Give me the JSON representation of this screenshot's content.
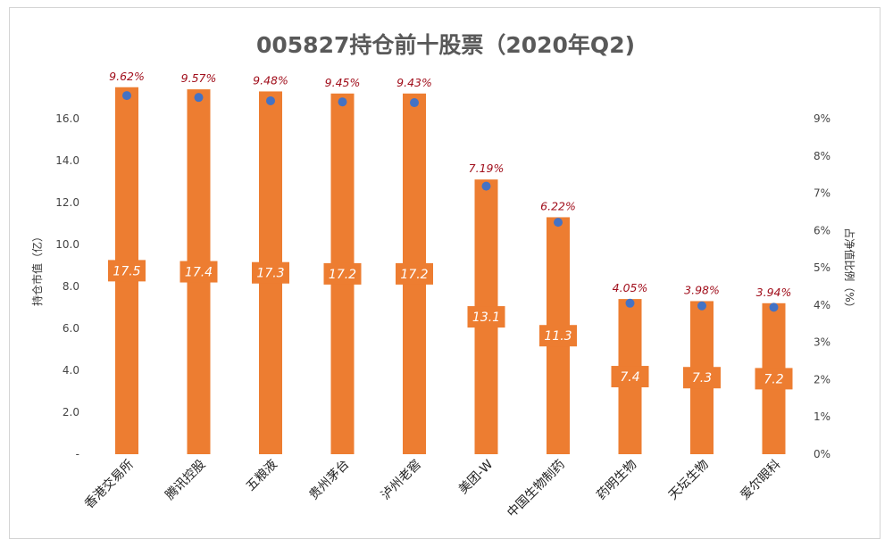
{
  "chart_data": {
    "type": "bar",
    "title": "005827持仓前十股票（2020年Q2)",
    "ylabel": "持仓市值（亿）",
    "y2label": "占净值比例（%）",
    "ylim": [
      0,
      18
    ],
    "y2lim": [
      0,
      10
    ],
    "yticks": [
      {
        "value": 0,
        "label": "-"
      },
      {
        "value": 2,
        "label": "2.0"
      },
      {
        "value": 4,
        "label": "4.0"
      },
      {
        "value": 6,
        "label": "6.0"
      },
      {
        "value": 8,
        "label": "8.0"
      },
      {
        "value": 10,
        "label": "10.0"
      },
      {
        "value": 12,
        "label": "12.0"
      },
      {
        "value": 14,
        "label": "14.0"
      },
      {
        "value": 16,
        "label": "16.0"
      }
    ],
    "y2ticks": [
      {
        "value": 0,
        "label": "0%"
      },
      {
        "value": 1,
        "label": "1%"
      },
      {
        "value": 2,
        "label": "2%"
      },
      {
        "value": 3,
        "label": "3%"
      },
      {
        "value": 4,
        "label": "4%"
      },
      {
        "value": 5,
        "label": "5%"
      },
      {
        "value": 6,
        "label": "6%"
      },
      {
        "value": 7,
        "label": "7%"
      },
      {
        "value": 8,
        "label": "8%"
      },
      {
        "value": 9,
        "label": "9%"
      }
    ],
    "categories": [
      "香港交易所",
      "腾讯控股",
      "五粮液",
      "贵州茅台",
      "泸州老窖",
      "美团-W",
      "中国生物制药",
      "药明生物",
      "天坛生物",
      "爱尔眼科"
    ],
    "series": [
      {
        "values": [
          17.5,
          17.4,
          17.3,
          17.2,
          17.2,
          13.1,
          11.3,
          7.4,
          7.3,
          7.2
        ],
        "labels": [
          "17.5",
          "17.4",
          "17.3",
          "17.2",
          "17.2",
          "13.1",
          "11.3",
          "7.4",
          "7.3",
          "7.2"
        ],
        "color": "#ed7d31",
        "axis": "left"
      },
      {
        "values": [
          9.62,
          9.57,
          9.48,
          9.45,
          9.43,
          7.19,
          6.22,
          4.05,
          3.98,
          3.94
        ],
        "labels": [
          "9.62%",
          "9.57%",
          "9.48%",
          "9.45%",
          "9.43%",
          "7.19%",
          "6.22%",
          "4.05%",
          "3.98%",
          "3.94%"
        ],
        "color": "#4472c4",
        "axis": "right",
        "marker": "dot"
      }
    ],
    "grid": false
  }
}
